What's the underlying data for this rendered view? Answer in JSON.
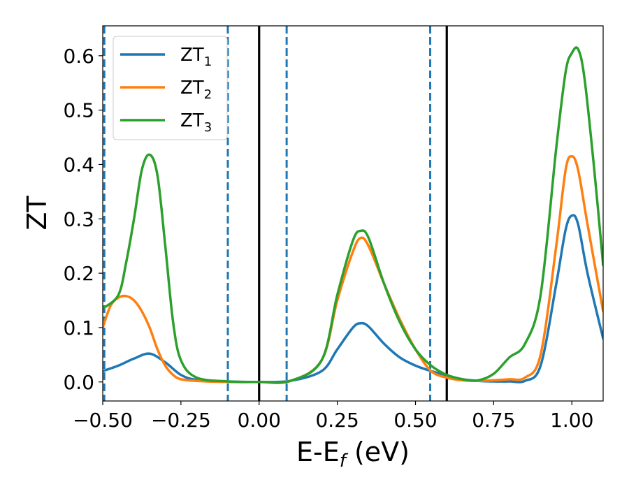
{
  "chart_data": {
    "type": "line",
    "xlabel": "E-E",
    "xlabel_sub": "f",
    "xlabel_unit": " (eV)",
    "ylabel": "ZT",
    "xlim": [
      -0.5,
      1.1
    ],
    "ylim": [
      -0.035,
      0.655
    ],
    "xticks": [
      -0.5,
      -0.25,
      0.0,
      0.25,
      0.5,
      0.75,
      1.0
    ],
    "xtick_labels": [
      "−0.50",
      "−0.25",
      "0.00",
      "0.25",
      "0.50",
      "0.75",
      "1.00"
    ],
    "yticks": [
      0.0,
      0.1,
      0.2,
      0.3,
      0.4,
      0.5,
      0.6
    ],
    "ytick_labels": [
      "0.0",
      "0.1",
      "0.2",
      "0.3",
      "0.4",
      "0.5",
      "0.6"
    ],
    "grid": false,
    "legend_position": "top-left",
    "series": [
      {
        "name": "ZT",
        "name_sub": "1",
        "color": "#1f77b4",
        "x": [
          -0.5,
          -0.45,
          -0.4,
          -0.35,
          -0.3,
          -0.25,
          -0.2,
          -0.1,
          0.0,
          0.1,
          0.2,
          0.25,
          0.3,
          0.325,
          0.35,
          0.4,
          0.45,
          0.5,
          0.55,
          0.6,
          0.65,
          0.7,
          0.75,
          0.8,
          0.85,
          0.9,
          0.95,
          0.98,
          1.0,
          1.02,
          1.05,
          1.1
        ],
        "y": [
          0.02,
          0.03,
          0.043,
          0.052,
          0.036,
          0.013,
          0.004,
          0.001,
          0.0,
          0.002,
          0.02,
          0.06,
          0.1,
          0.108,
          0.102,
          0.07,
          0.045,
          0.03,
          0.02,
          0.012,
          0.005,
          0.002,
          0.001,
          0.001,
          0.002,
          0.03,
          0.18,
          0.28,
          0.306,
          0.29,
          0.2,
          0.08
        ]
      },
      {
        "name": "ZT",
        "name_sub": "2",
        "color": "#ff7f0e",
        "x": [
          -0.5,
          -0.475,
          -0.45,
          -0.425,
          -0.4,
          -0.375,
          -0.35,
          -0.325,
          -0.3,
          -0.275,
          -0.25,
          -0.2,
          -0.1,
          0.0,
          0.1,
          0.2,
          0.25,
          0.3,
          0.325,
          0.35,
          0.4,
          0.45,
          0.5,
          0.55,
          0.6,
          0.65,
          0.7,
          0.75,
          0.8,
          0.85,
          0.9,
          0.95,
          0.98,
          1.0,
          1.02,
          1.05,
          1.1
        ],
        "y": [
          0.1,
          0.14,
          0.155,
          0.158,
          0.15,
          0.13,
          0.1,
          0.06,
          0.03,
          0.013,
          0.005,
          0.002,
          0.0,
          0.0,
          0.002,
          0.04,
          0.15,
          0.24,
          0.265,
          0.25,
          0.18,
          0.115,
          0.06,
          0.02,
          0.008,
          0.003,
          0.002,
          0.003,
          0.005,
          0.008,
          0.05,
          0.25,
          0.39,
          0.415,
          0.39,
          0.29,
          0.13
        ]
      },
      {
        "name": "ZT",
        "name_sub": "3",
        "color": "#2ca02c",
        "x": [
          -0.5,
          -0.45,
          -0.425,
          -0.4,
          -0.375,
          -0.35,
          -0.325,
          -0.3,
          -0.275,
          -0.25,
          -0.2,
          -0.1,
          0.0,
          0.1,
          0.2,
          0.25,
          0.3,
          0.325,
          0.35,
          0.4,
          0.45,
          0.5,
          0.55,
          0.6,
          0.65,
          0.7,
          0.75,
          0.8,
          0.85,
          0.9,
          0.95,
          0.98,
          1.0,
          1.02,
          1.04,
          1.07,
          1.1
        ],
        "y": [
          0.135,
          0.16,
          0.22,
          0.3,
          0.39,
          0.418,
          0.38,
          0.25,
          0.11,
          0.04,
          0.008,
          0.001,
          0.0,
          0.002,
          0.04,
          0.16,
          0.26,
          0.278,
          0.265,
          0.18,
          0.11,
          0.06,
          0.03,
          0.013,
          0.005,
          0.003,
          0.015,
          0.045,
          0.07,
          0.16,
          0.43,
          0.57,
          0.605,
          0.612,
          0.56,
          0.4,
          0.215
        ]
      }
    ],
    "vlines": [
      {
        "x": -0.495,
        "color": "#1f77b4",
        "style": "dashed"
      },
      {
        "x": -0.1,
        "color": "#1f77b4",
        "style": "dashed"
      },
      {
        "x": 0.0,
        "color": "#000000",
        "style": "solid"
      },
      {
        "x": 0.088,
        "color": "#1f77b4",
        "style": "dashed"
      },
      {
        "x": 0.547,
        "color": "#1f77b4",
        "style": "dashed"
      },
      {
        "x": 0.6,
        "color": "#000000",
        "style": "solid"
      }
    ]
  }
}
